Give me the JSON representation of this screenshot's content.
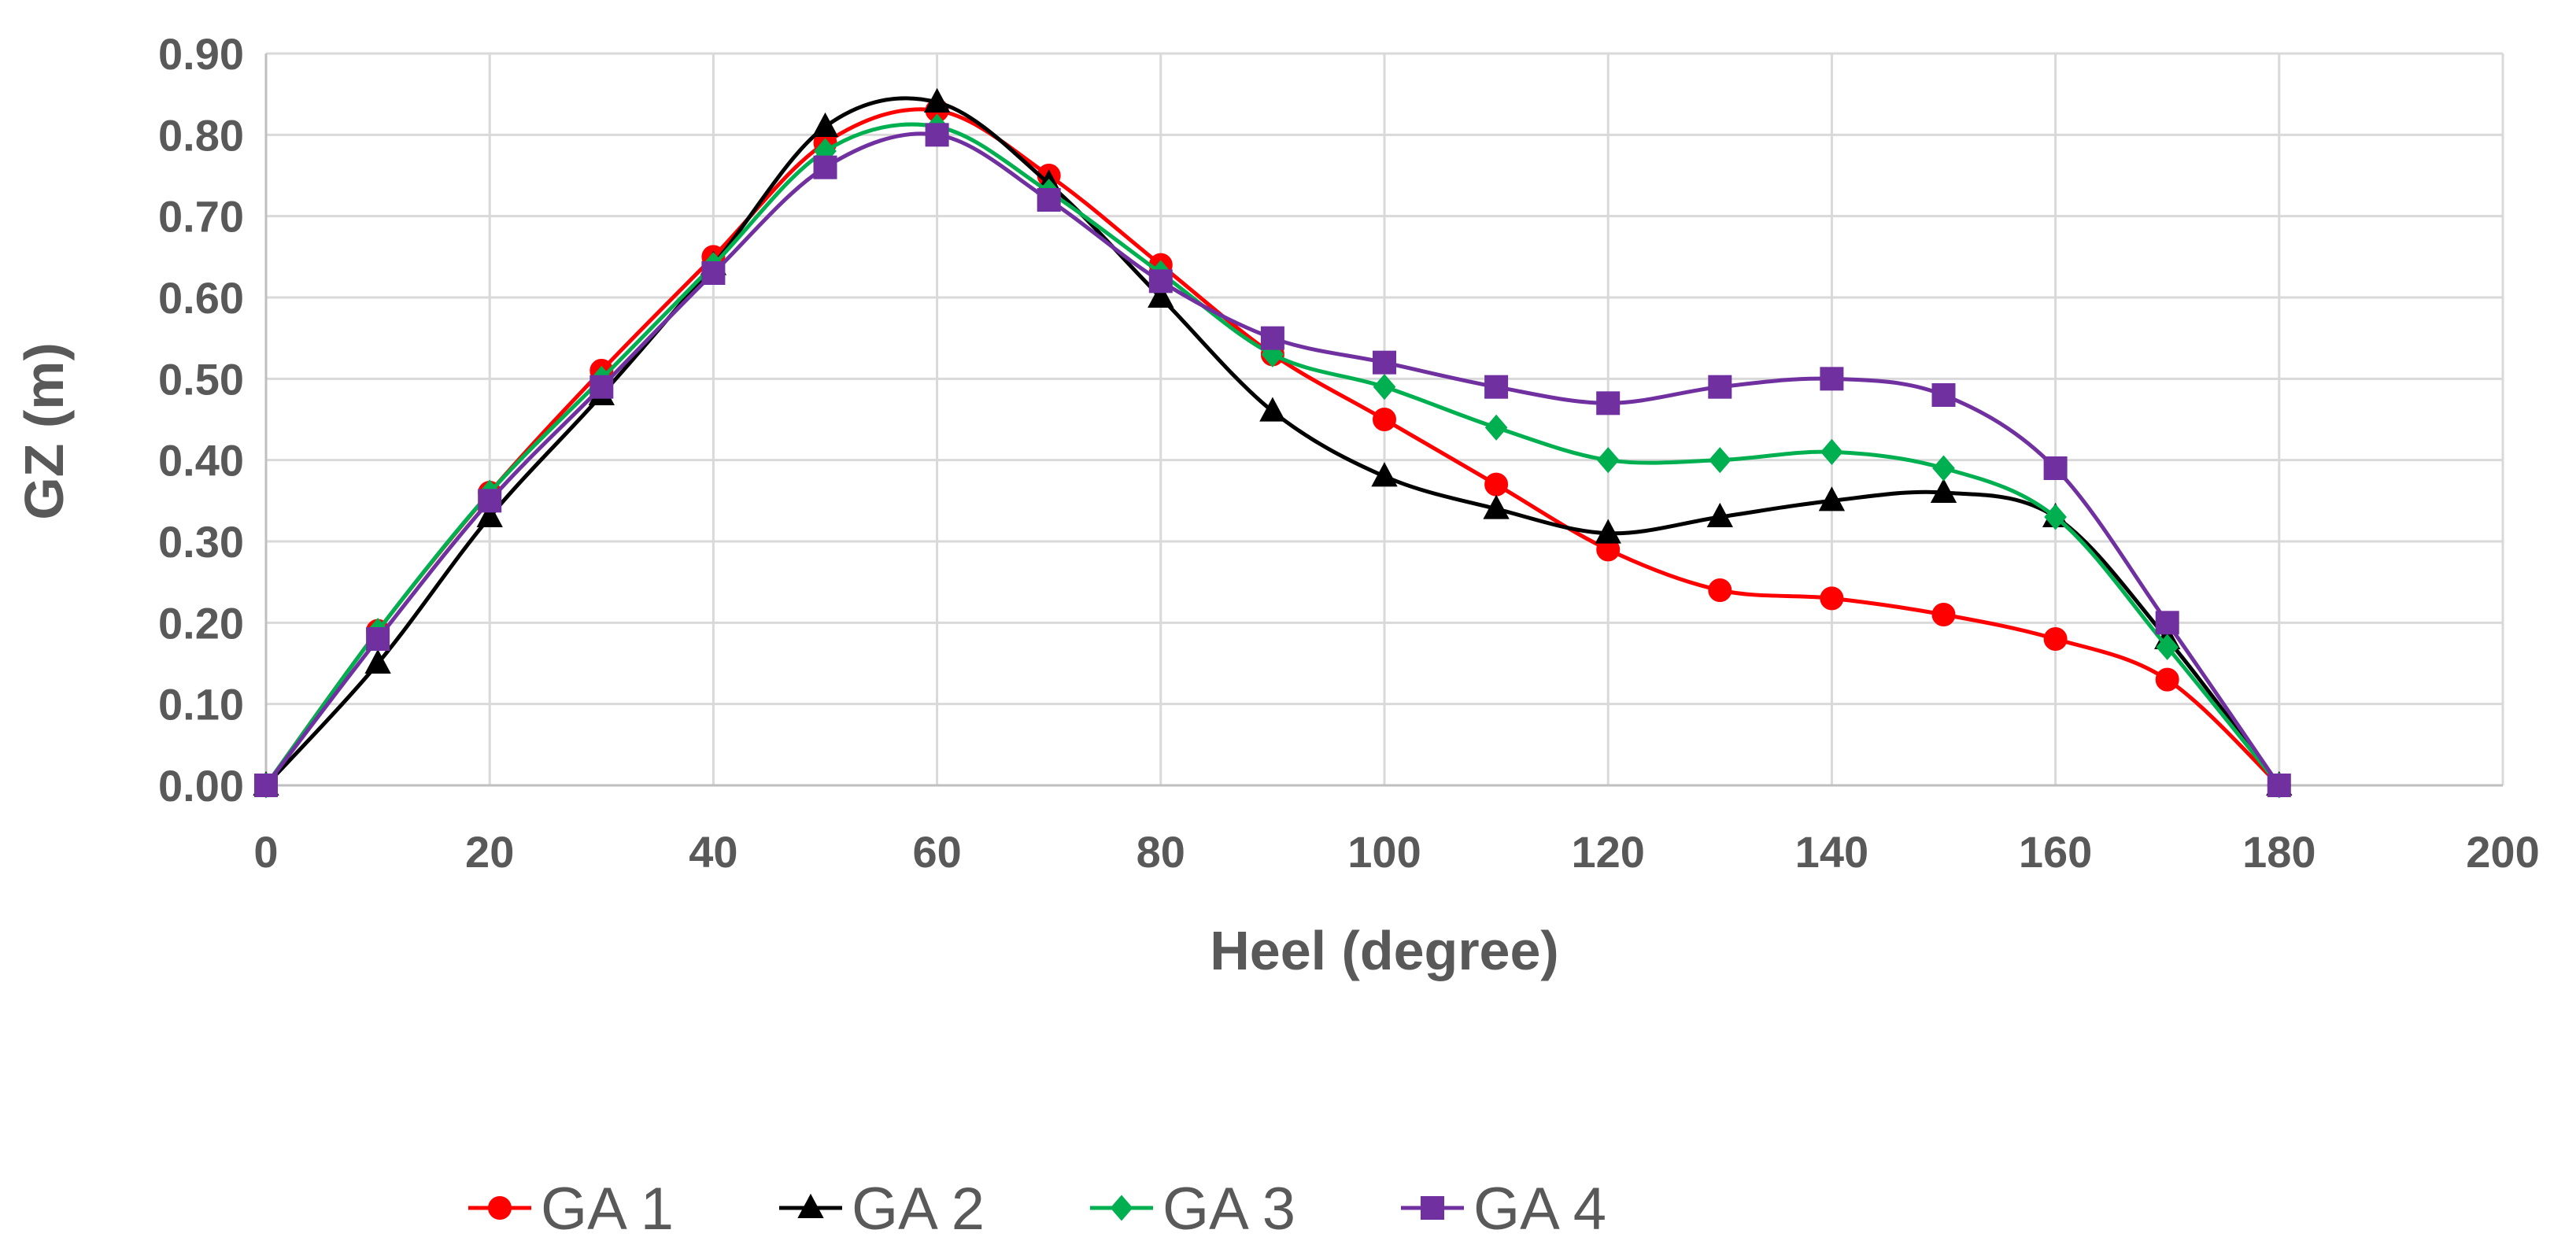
{
  "chart_data": {
    "type": "line",
    "smooth": true,
    "title": "",
    "xlabel": "Heel (degree)",
    "ylabel": "GZ (m)",
    "xlim": [
      0,
      200
    ],
    "ylim": [
      0,
      0.9
    ],
    "xticks": [
      0,
      20,
      40,
      60,
      80,
      100,
      120,
      140,
      160,
      180,
      200
    ],
    "xtick_labels": [
      "0",
      "20",
      "40",
      "60",
      "80",
      "100",
      "120",
      "140",
      "160",
      "180",
      "200"
    ],
    "yticks": [
      0,
      0.1,
      0.2,
      0.3,
      0.4,
      0.5,
      0.6,
      0.7,
      0.8,
      0.9
    ],
    "ytick_labels": [
      "0.00",
      "0.10",
      "0.20",
      "0.30",
      "0.40",
      "0.50",
      "0.60",
      "0.70",
      "0.80",
      "0.90"
    ],
    "grid": true,
    "legend_position": "bottom",
    "x": [
      0,
      10,
      20,
      30,
      40,
      50,
      60,
      70,
      80,
      90,
      100,
      110,
      120,
      130,
      140,
      150,
      160,
      170,
      180
    ],
    "series": [
      {
        "name": "GA 1",
        "color": "#ff0000",
        "marker": "circle",
        "values": [
          0.0,
          0.19,
          0.36,
          0.51,
          0.65,
          0.79,
          0.83,
          0.75,
          0.64,
          0.53,
          0.45,
          0.37,
          0.29,
          0.24,
          0.23,
          0.21,
          0.18,
          0.13,
          0.0
        ]
      },
      {
        "name": "GA 2",
        "color": "#000000",
        "marker": "triangle",
        "values": [
          0.0,
          0.15,
          0.33,
          0.48,
          0.64,
          0.81,
          0.84,
          0.74,
          0.6,
          0.46,
          0.38,
          0.34,
          0.31,
          0.33,
          0.35,
          0.36,
          0.33,
          0.18,
          0.0
        ]
      },
      {
        "name": "GA 3",
        "color": "#00b050",
        "marker": "diamond",
        "values": [
          0.0,
          0.19,
          0.36,
          0.5,
          0.64,
          0.78,
          0.81,
          0.73,
          0.63,
          0.53,
          0.49,
          0.44,
          0.4,
          0.4,
          0.41,
          0.39,
          0.33,
          0.17,
          0.0
        ]
      },
      {
        "name": "GA 4",
        "color": "#7030a0",
        "marker": "square",
        "values": [
          0.0,
          0.18,
          0.35,
          0.49,
          0.63,
          0.76,
          0.8,
          0.72,
          0.62,
          0.55,
          0.52,
          0.49,
          0.47,
          0.49,
          0.5,
          0.48,
          0.39,
          0.2,
          0.0
        ]
      }
    ]
  }
}
